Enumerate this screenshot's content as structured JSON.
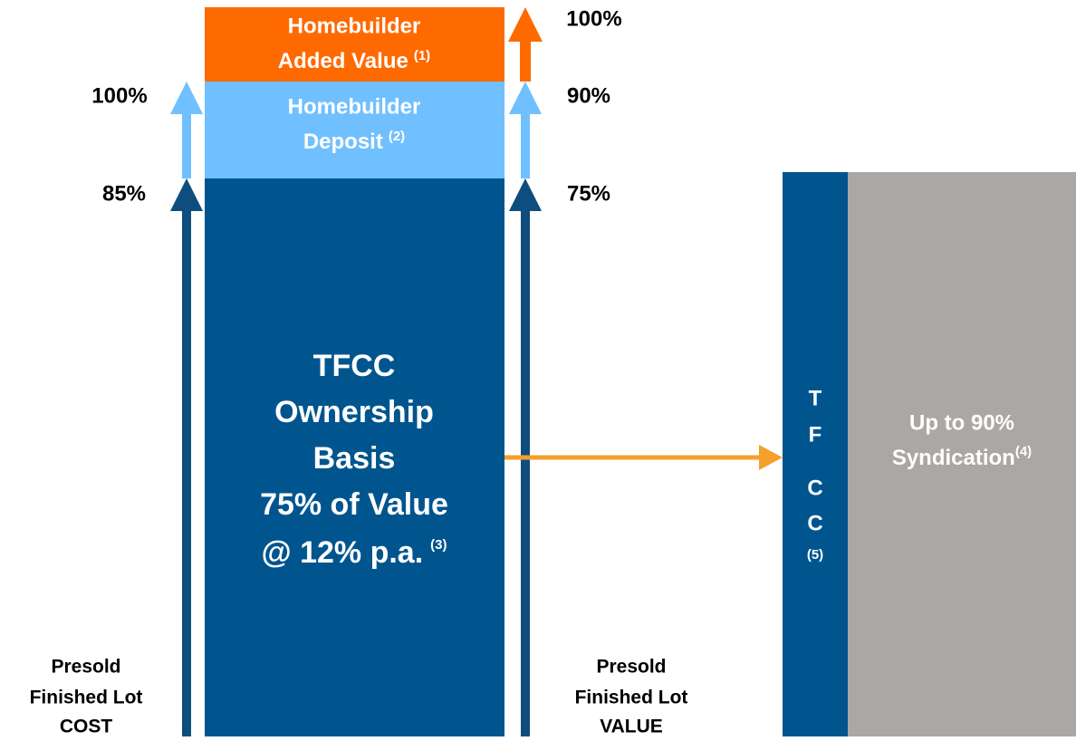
{
  "added_value": {
    "lines": [
      "Homebuilder",
      "Added Value"
    ],
    "note": "(1)"
  },
  "deposit": {
    "lines": [
      "Homebuilder",
      "Deposit"
    ],
    "note": "(2)"
  },
  "ownership": {
    "lines": [
      "TFCC",
      "Ownership",
      "Basis",
      "75% of Value",
      "@ 12% p.a."
    ],
    "note": "(3)"
  },
  "cost_axis": {
    "labels": [
      "100%",
      "85%"
    ],
    "caption": [
      "Presold",
      "Finished Lot",
      "COST"
    ]
  },
  "value_axis": {
    "labels": [
      "100%",
      "90%",
      "75%"
    ],
    "caption": [
      "Presold",
      "Finished Lot",
      "VALUE"
    ]
  },
  "tfcc": {
    "letters": [
      "T",
      "F",
      "C",
      "C"
    ],
    "note": "(5)"
  },
  "syndication": {
    "lines": [
      "Up to 90%",
      "Syndication"
    ],
    "note": "(4)"
  }
}
